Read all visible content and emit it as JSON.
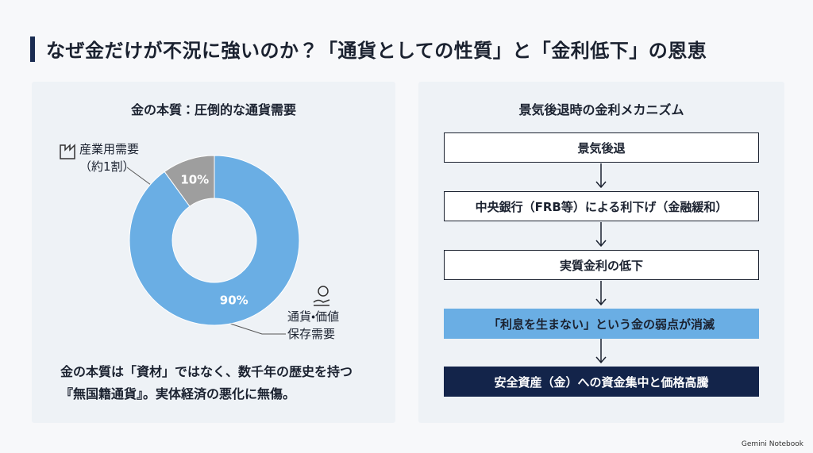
{
  "title": "なぜ金だけが不況に強いのか？「通貨としての性質」と「金利低下」の恩恵",
  "chart_data": {
    "type": "pie",
    "title": "金の本質：圧倒的な通貨需要",
    "categories": [
      "産業用需要\n（約1割）",
      "通貨・価値\n保存需要"
    ],
    "values": [
      10,
      90
    ],
    "value_labels": [
      "10%",
      "90%"
    ],
    "colors": [
      "#9e9e9e",
      "#6aaee4"
    ]
  },
  "caption": "金の本質は「資材」ではなく、数千年の歴史を持つ\n『無国籍通貨』。実体経済の悪化に無傷。",
  "flow": {
    "title": "景気後退時の金利メカニズム",
    "steps": [
      "景気後退",
      "中央銀行（FRB等）による利下げ（金融緩和）",
      "実質金利の低下",
      "「利息を生まない」という金の弱点が消滅",
      "安全資産（金）への資金集中と価格高騰"
    ]
  },
  "footer": "Gemini Notebook"
}
